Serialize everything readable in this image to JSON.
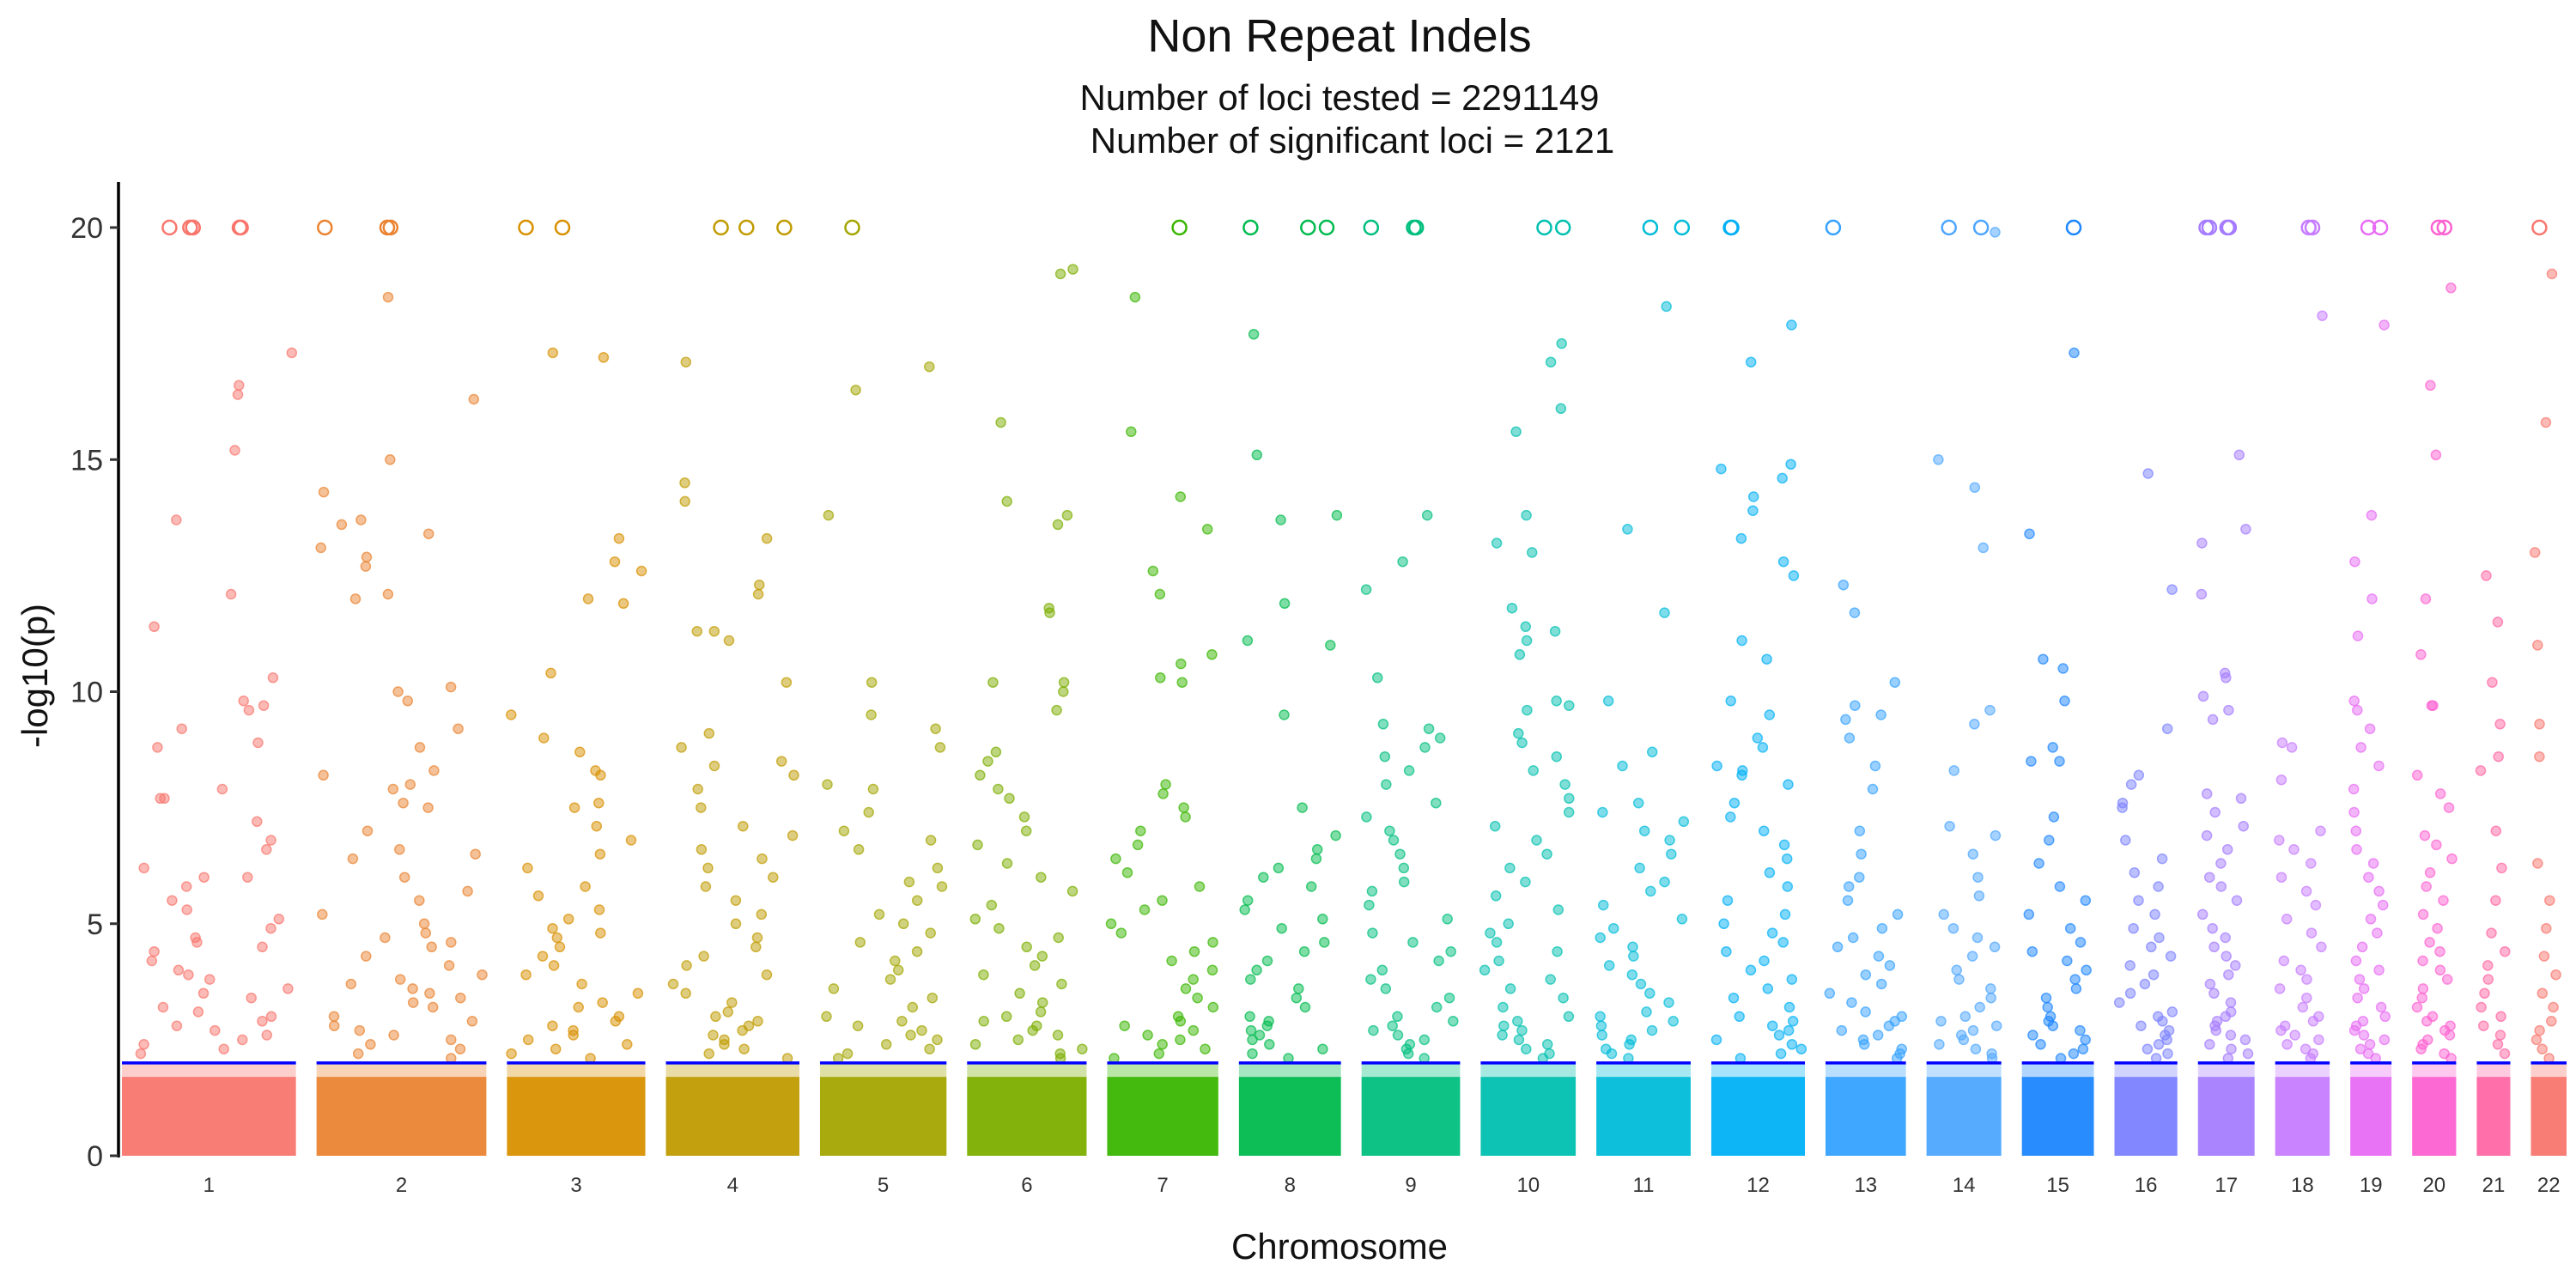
{
  "chart_data": {
    "type": "scatter",
    "title": "Non Repeat Indels",
    "subtitle_line1": "Number of loci tested = 2291149",
    "subtitle_line2": "Number of significant loci = 2121",
    "xlabel": "Chromosome",
    "ylabel": "-log10(p)",
    "ylim": [
      0,
      20
    ],
    "yticks": [
      0,
      5,
      10,
      15,
      20
    ],
    "threshold": 2,
    "threshold_color": "#0000ff",
    "capped_value": 20,
    "grid": false,
    "legend": "none",
    "chromosomes": [
      {
        "label": "1",
        "color": "#f8766d",
        "top_hits": [
          15.2,
          13.7,
          12.1,
          17.3,
          16.6,
          16.4,
          11.4,
          10.3,
          9.8,
          9.7,
          9.6,
          9.2,
          8.9,
          8.8,
          7.9,
          7.7,
          7.7,
          7.2,
          6.8,
          6.6,
          6.2,
          6.0,
          6.0,
          5.8,
          5.5,
          5.3,
          5.1,
          4.9,
          4.7,
          4.6,
          4.5,
          4.4,
          4.2,
          4.0,
          3.9,
          3.8,
          3.6,
          3.5,
          3.4,
          3.2,
          3.1,
          3.0,
          2.9,
          2.8,
          2.7,
          2.6,
          2.5,
          2.4,
          2.3,
          2.2
        ],
        "capped": 6
      },
      {
        "label": "2",
        "color": "#ea8331",
        "top_hits": [
          18.5,
          16.3,
          15.0,
          14.3,
          13.7,
          13.6,
          13.4,
          13.1,
          12.9,
          12.7,
          12.1,
          12.0,
          10.1,
          10.0,
          9.8,
          9.2,
          8.8,
          8.3,
          8.2,
          8.0,
          7.9,
          7.6,
          7.5,
          7.0,
          6.6,
          6.5,
          6.4,
          6.0,
          5.7,
          5.5,
          5.2,
          5.0,
          4.8,
          4.7,
          4.6,
          4.5,
          4.3,
          4.1,
          3.9,
          3.8,
          3.7,
          3.6,
          3.5,
          3.4,
          3.3,
          3.2,
          3.0,
          2.9,
          2.8,
          2.7,
          2.6,
          2.5,
          2.4,
          2.3,
          2.2,
          2.1
        ],
        "capped": 3
      },
      {
        "label": "3",
        "color": "#d89000",
        "top_hits": [
          17.3,
          17.2,
          13.3,
          12.8,
          12.6,
          12.0,
          11.9,
          10.4,
          9.5,
          9.0,
          8.7,
          8.3,
          8.2,
          7.6,
          7.5,
          7.1,
          6.8,
          6.5,
          6.2,
          5.8,
          5.6,
          5.3,
          5.1,
          4.9,
          4.8,
          4.7,
          4.5,
          4.3,
          4.1,
          3.9,
          3.7,
          3.5,
          3.3,
          3.2,
          3.0,
          2.9,
          2.8,
          2.7,
          2.6,
          2.5,
          2.4,
          2.3,
          2.2,
          2.1
        ],
        "capped": 2
      },
      {
        "label": "4",
        "color": "#c09b00",
        "top_hits": [
          17.1,
          14.5,
          14.1,
          13.3,
          12.3,
          12.1,
          11.3,
          11.3,
          11.1,
          10.2,
          9.1,
          8.8,
          8.5,
          8.4,
          8.2,
          7.9,
          7.5,
          7.1,
          6.9,
          6.6,
          6.4,
          6.2,
          6.0,
          5.8,
          5.5,
          5.2,
          5.0,
          4.7,
          4.5,
          4.3,
          4.1,
          3.9,
          3.7,
          3.5,
          3.3,
          3.1,
          3.0,
          2.9,
          2.8,
          2.7,
          2.6,
          2.5,
          2.4,
          2.3,
          2.2,
          2.1
        ],
        "capped": 3
      },
      {
        "label": "5",
        "color": "#a3a500",
        "top_hits": [
          17.0,
          16.5,
          13.8,
          10.2,
          9.5,
          9.2,
          8.8,
          8.0,
          7.9,
          7.4,
          7.0,
          6.8,
          6.6,
          6.2,
          5.9,
          5.8,
          5.5,
          5.2,
          5.0,
          4.8,
          4.6,
          4.4,
          4.2,
          4.0,
          3.8,
          3.6,
          3.4,
          3.2,
          3.0,
          2.9,
          2.8,
          2.7,
          2.6,
          2.5,
          2.4,
          2.3,
          2.2,
          2.1
        ],
        "capped": 1
      },
      {
        "label": "6",
        "color": "#7cae00",
        "top_hits": [
          19.1,
          19.0,
          15.8,
          14.1,
          13.8,
          13.6,
          11.8,
          11.7,
          10.2,
          10.2,
          10.0,
          9.6,
          8.7,
          8.5,
          8.2,
          7.9,
          7.7,
          7.3,
          7.0,
          6.7,
          6.3,
          6.0,
          5.7,
          5.4,
          5.1,
          4.9,
          4.7,
          4.5,
          4.3,
          4.1,
          3.9,
          3.7,
          3.5,
          3.3,
          3.1,
          3.0,
          2.9,
          2.8,
          2.7,
          2.6,
          2.5,
          2.4,
          2.3,
          2.2,
          2.1
        ],
        "capped": 0
      },
      {
        "label": "7",
        "color": "#39b600",
        "top_hits": [
          18.5,
          15.6,
          14.2,
          13.5,
          12.6,
          12.1,
          10.8,
          10.6,
          10.3,
          10.2,
          8.0,
          7.8,
          7.5,
          7.3,
          7.0,
          6.7,
          6.4,
          6.1,
          5.8,
          5.5,
          5.3,
          5.0,
          4.8,
          4.6,
          4.4,
          4.2,
          4.0,
          3.8,
          3.6,
          3.4,
          3.2,
          3.0,
          2.9,
          2.8,
          2.7,
          2.6,
          2.5,
          2.4,
          2.3,
          2.2,
          2.1
        ],
        "capped": 1
      },
      {
        "label": "8",
        "color": "#00bb4e",
        "top_hits": [
          17.7,
          15.1,
          13.8,
          13.7,
          11.9,
          11.1,
          11.0,
          9.5,
          7.5,
          6.9,
          6.6,
          6.4,
          6.2,
          6.0,
          5.8,
          5.5,
          5.3,
          5.1,
          4.9,
          4.6,
          4.4,
          4.2,
          4.0,
          3.8,
          3.6,
          3.4,
          3.2,
          3.0,
          2.9,
          2.8,
          2.7,
          2.6,
          2.5,
          2.4,
          2.3,
          2.2,
          2.1
        ],
        "capped": 3
      },
      {
        "label": "9",
        "color": "#00bf7d",
        "top_hits": [
          13.8,
          12.8,
          12.2,
          10.3,
          9.3,
          9.2,
          9.0,
          8.8,
          8.6,
          8.3,
          8.0,
          7.6,
          7.3,
          7.0,
          6.8,
          6.5,
          6.2,
          5.9,
          5.7,
          5.4,
          5.1,
          4.8,
          4.6,
          4.4,
          4.2,
          4.0,
          3.8,
          3.6,
          3.4,
          3.2,
          3.0,
          2.9,
          2.8,
          2.7,
          2.6,
          2.5,
          2.4,
          2.3,
          2.2,
          2.1
        ],
        "capped": 3
      },
      {
        "label": "10",
        "color": "#00c0af",
        "top_hits": [
          17.5,
          17.1,
          16.1,
          15.6,
          13.8,
          13.2,
          13.0,
          11.8,
          11.4,
          11.3,
          11.1,
          10.8,
          9.8,
          9.7,
          9.6,
          9.1,
          8.9,
          8.6,
          8.3,
          8.0,
          7.7,
          7.4,
          7.1,
          6.8,
          6.5,
          6.2,
          5.9,
          5.6,
          5.3,
          5.0,
          4.8,
          4.6,
          4.4,
          4.2,
          4.0,
          3.8,
          3.6,
          3.4,
          3.2,
          3.0,
          2.9,
          2.8,
          2.7,
          2.6,
          2.5,
          2.4,
          2.3,
          2.2,
          2.1
        ],
        "capped": 2
      },
      {
        "label": "11",
        "color": "#00bcd8",
        "top_hits": [
          18.3,
          13.5,
          11.7,
          9.8,
          8.7,
          8.4,
          7.6,
          7.4,
          7.2,
          7.0,
          6.8,
          6.5,
          6.2,
          5.9,
          5.7,
          5.4,
          5.1,
          4.9,
          4.7,
          4.5,
          4.3,
          4.1,
          3.9,
          3.7,
          3.5,
          3.3,
          3.1,
          3.0,
          2.9,
          2.8,
          2.7,
          2.6,
          2.5,
          2.4,
          2.3,
          2.2,
          2.1
        ],
        "capped": 2
      },
      {
        "label": "12",
        "color": "#00b0f6",
        "top_hits": [
          17.9,
          17.1,
          14.9,
          14.8,
          14.6,
          14.2,
          13.9,
          13.3,
          12.8,
          12.5,
          11.1,
          10.7,
          9.8,
          9.5,
          9.0,
          8.8,
          8.4,
          8.3,
          8.2,
          8.0,
          7.6,
          7.3,
          7.0,
          6.7,
          6.4,
          6.1,
          5.8,
          5.5,
          5.2,
          5.0,
          4.8,
          4.6,
          4.4,
          4.2,
          4.0,
          3.8,
          3.6,
          3.4,
          3.2,
          3.0,
          2.9,
          2.8,
          2.7,
          2.6,
          2.5,
          2.4,
          2.3,
          2.2,
          2.1
        ],
        "capped": 2
      },
      {
        "label": "13",
        "color": "#35a2ff",
        "top_hits": [
          12.3,
          11.7,
          10.2,
          9.7,
          9.5,
          9.4,
          9.0,
          8.4,
          7.9,
          7.0,
          6.5,
          6.0,
          5.8,
          5.5,
          5.2,
          4.9,
          4.7,
          4.5,
          4.3,
          4.1,
          3.9,
          3.7,
          3.5,
          3.3,
          3.1,
          3.0,
          2.9,
          2.8,
          2.7,
          2.6,
          2.5,
          2.4,
          2.3,
          2.2,
          2.1
        ],
        "capped": 1
      },
      {
        "label": "14",
        "color": "#4da6ff",
        "top_hits": [
          19.9,
          15.0,
          14.4,
          13.1,
          9.6,
          9.3,
          8.3,
          7.1,
          6.9,
          6.5,
          6.0,
          5.6,
          5.2,
          4.9,
          4.7,
          4.5,
          4.3,
          4.0,
          3.8,
          3.6,
          3.4,
          3.2,
          3.0,
          2.9,
          2.8,
          2.7,
          2.6,
          2.5,
          2.4,
          2.3,
          2.2,
          2.1
        ],
        "capped": 2
      },
      {
        "label": "15",
        "color": "#1c86ff",
        "top_hits": [
          17.3,
          13.4,
          10.7,
          10.5,
          9.8,
          8.8,
          8.5,
          8.5,
          7.3,
          6.8,
          6.3,
          5.8,
          5.5,
          5.2,
          4.9,
          4.6,
          4.4,
          4.2,
          4.0,
          3.8,
          3.6,
          3.4,
          3.2,
          3.0,
          2.9,
          2.8,
          2.7,
          2.6,
          2.5,
          2.4,
          2.3,
          2.2,
          2.1
        ],
        "capped": 1
      },
      {
        "label": "16",
        "color": "#7c81ff",
        "top_hits": [
          14.7,
          12.2,
          9.2,
          8.2,
          8.0,
          7.6,
          7.5,
          6.8,
          6.4,
          6.1,
          5.8,
          5.5,
          5.2,
          4.9,
          4.7,
          4.5,
          4.3,
          4.1,
          3.9,
          3.7,
          3.5,
          3.3,
          3.1,
          3.0,
          2.9,
          2.8,
          2.7,
          2.6,
          2.5,
          2.4,
          2.3,
          2.2,
          2.1
        ],
        "capped": 0
      },
      {
        "label": "17",
        "color": "#a57cff",
        "top_hits": [
          15.1,
          13.5,
          13.2,
          12.1,
          10.4,
          10.3,
          9.9,
          9.6,
          9.4,
          7.8,
          7.7,
          7.4,
          7.1,
          6.9,
          6.6,
          6.3,
          6.0,
          5.8,
          5.5,
          5.2,
          4.9,
          4.7,
          4.5,
          4.3,
          4.1,
          3.9,
          3.7,
          3.5,
          3.3,
          3.1,
          3.0,
          2.9,
          2.8,
          2.7,
          2.6,
          2.5,
          2.4,
          2.3,
          2.2,
          2.1
        ],
        "capped": 4
      },
      {
        "label": "18",
        "color": "#c77cff",
        "top_hits": [
          18.1,
          8.9,
          8.8,
          8.1,
          7.0,
          6.8,
          6.6,
          6.3,
          6.0,
          5.7,
          5.4,
          5.1,
          4.8,
          4.5,
          4.2,
          4.0,
          3.8,
          3.6,
          3.4,
          3.2,
          3.0,
          2.9,
          2.8,
          2.7,
          2.6,
          2.5,
          2.4,
          2.3,
          2.2,
          2.1
        ],
        "capped": 2
      },
      {
        "label": "19",
        "color": "#e76bf3",
        "top_hits": [
          17.9,
          13.8,
          12.8,
          12.0,
          11.2,
          9.8,
          9.6,
          9.2,
          8.8,
          8.4,
          7.9,
          7.4,
          7.0,
          6.6,
          6.3,
          6.0,
          5.7,
          5.4,
          5.1,
          4.8,
          4.5,
          4.2,
          4.0,
          3.8,
          3.6,
          3.4,
          3.2,
          3.0,
          2.9,
          2.8,
          2.7,
          2.6,
          2.5,
          2.4,
          2.3,
          2.2,
          2.1
        ],
        "capped": 2
      },
      {
        "label": "20",
        "color": "#fd61d1",
        "top_hits": [
          18.7,
          16.6,
          15.1,
          12.0,
          10.8,
          9.7,
          9.7,
          8.2,
          7.8,
          7.5,
          6.9,
          6.7,
          6.4,
          6.1,
          5.8,
          5.5,
          5.2,
          4.9,
          4.6,
          4.4,
          4.2,
          4.0,
          3.8,
          3.6,
          3.4,
          3.2,
          3.0,
          2.9,
          2.8,
          2.7,
          2.6,
          2.5,
          2.4,
          2.3,
          2.2,
          2.1
        ],
        "capped": 2
      },
      {
        "label": "21",
        "color": "#ff67a4",
        "top_hits": [
          12.5,
          11.5,
          10.2,
          9.3,
          8.6,
          8.3,
          7.0,
          6.2,
          5.5,
          4.8,
          4.4,
          4.1,
          3.8,
          3.5,
          3.2,
          3.0,
          2.8,
          2.6,
          2.4,
          2.2
        ],
        "capped": 0
      },
      {
        "label": "22",
        "color": "#f8766d",
        "top_hits": [
          19.0,
          15.8,
          13.0,
          11.0,
          9.3,
          8.6,
          6.3,
          5.5,
          4.9,
          4.3,
          3.9,
          3.5,
          3.2,
          2.9,
          2.7,
          2.5,
          2.3,
          2.1
        ],
        "capped": 1
      }
    ]
  }
}
